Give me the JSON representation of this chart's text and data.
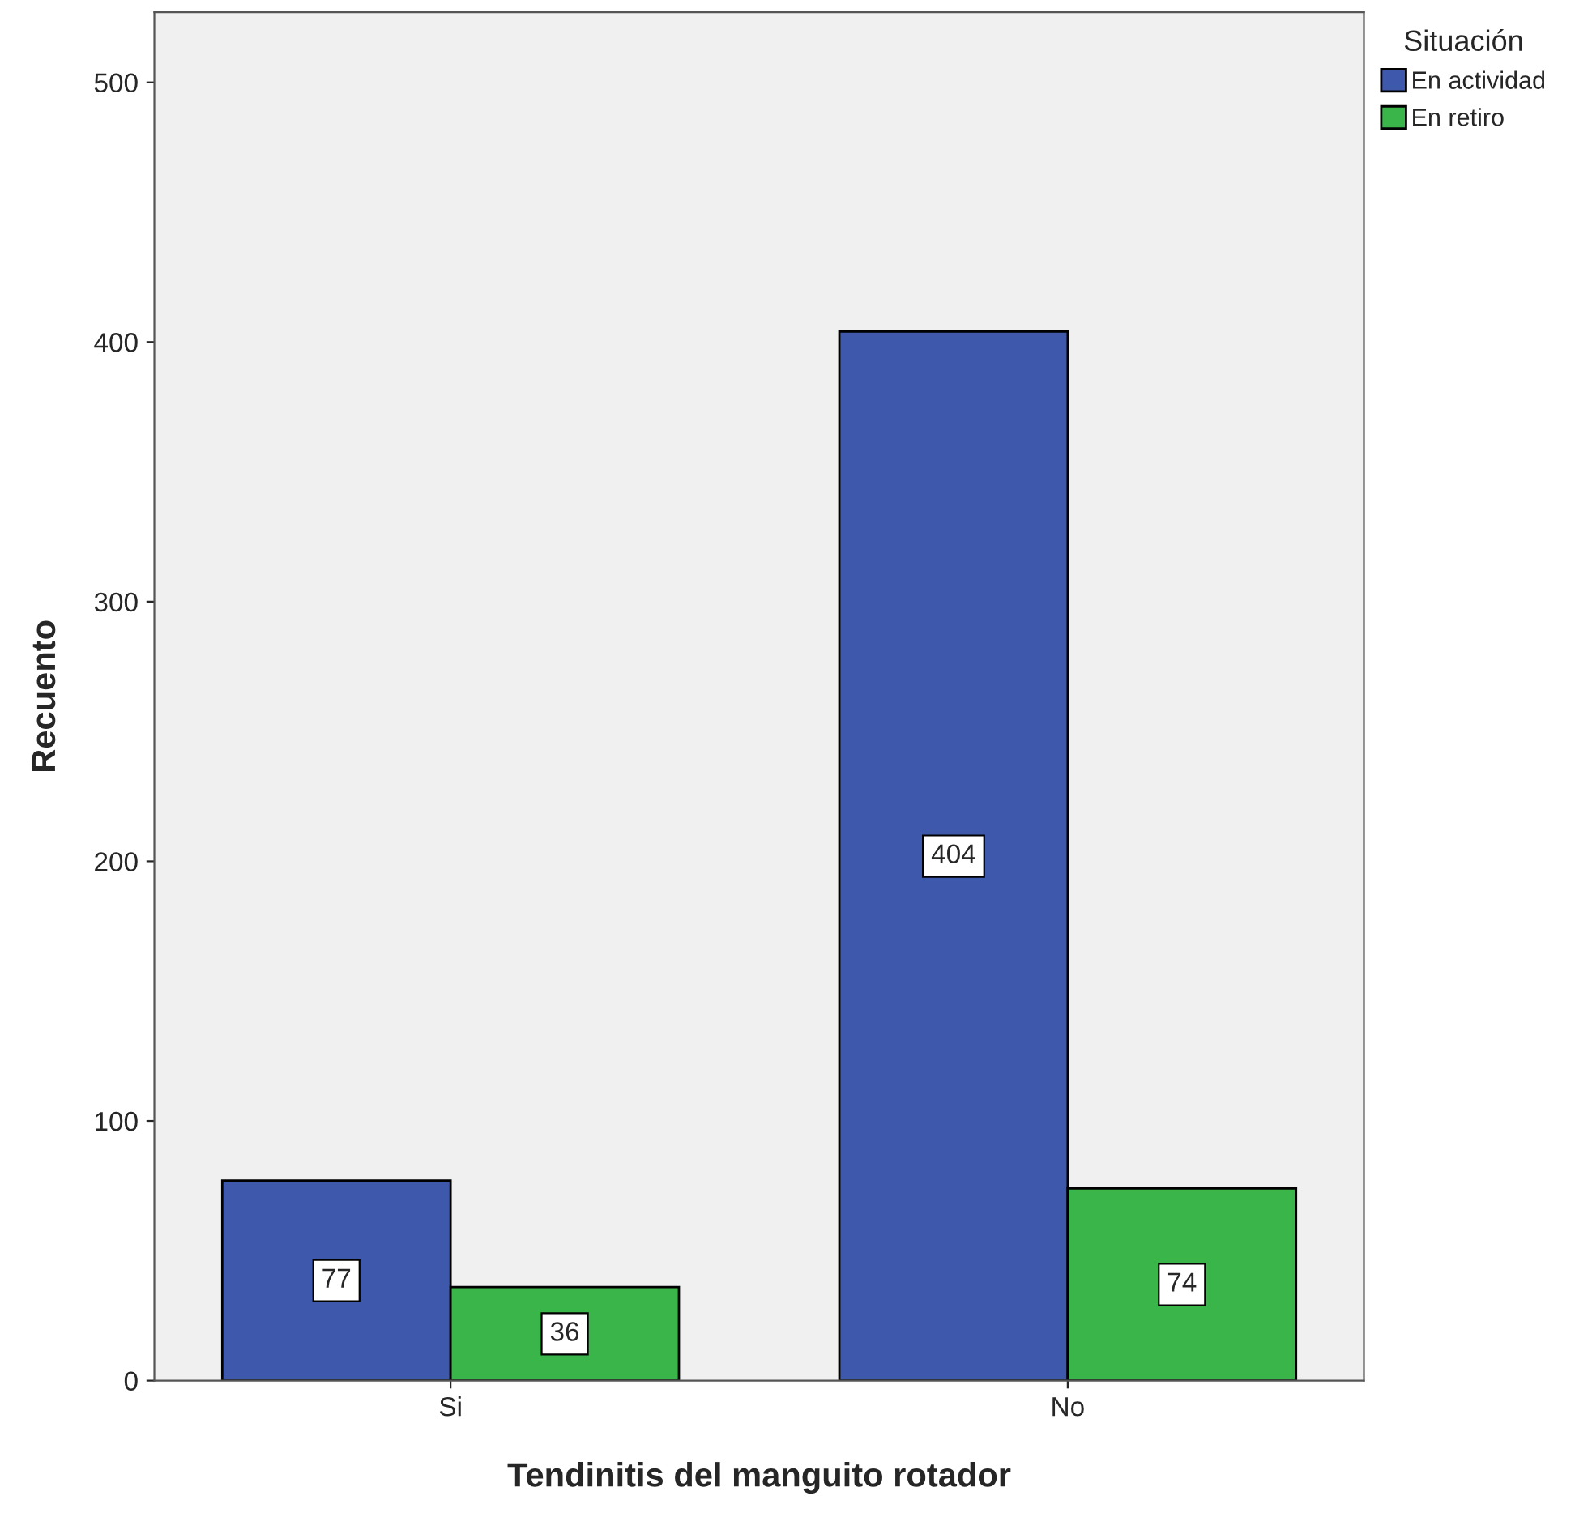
{
  "chart_data": {
    "type": "bar",
    "xlabel": "Tendinitis del manguito rotador",
    "ylabel": "Recuento",
    "legend_title": "Situación",
    "categories": [
      "Si",
      "No"
    ],
    "series": [
      {
        "name": "En actividad",
        "color": "#3e58ac",
        "values": [
          77,
          404
        ]
      },
      {
        "name": "En retiro",
        "color": "#3ab54a",
        "values": [
          36,
          74
        ]
      }
    ],
    "ylim": [
      0,
      527
    ],
    "yticks": [
      0,
      100,
      200,
      300,
      400,
      500
    ],
    "grid": false,
    "legend": "top right",
    "data_labels": true
  }
}
